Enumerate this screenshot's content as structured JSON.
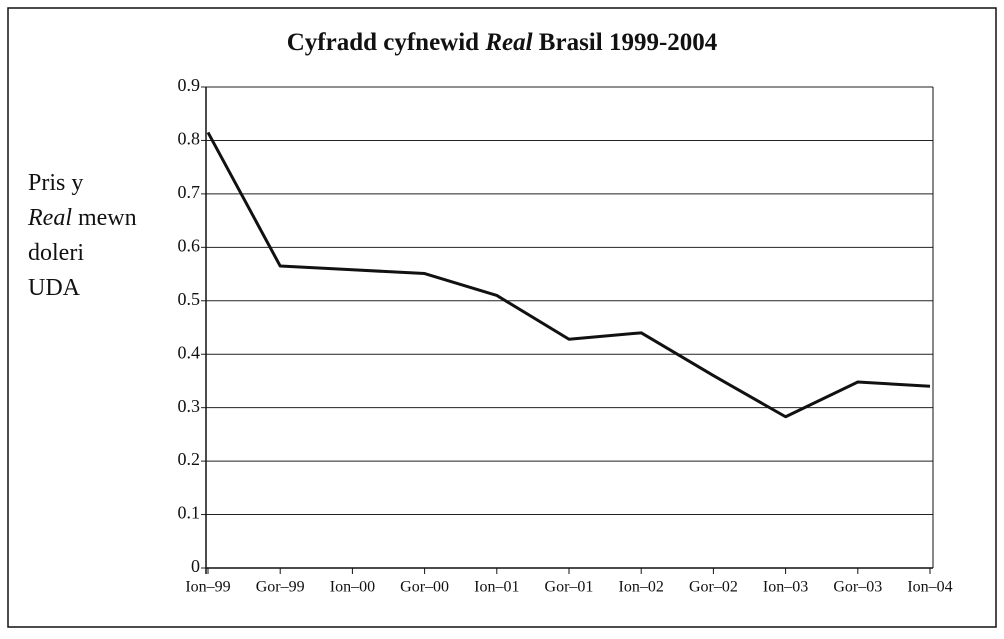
{
  "chart_data": {
    "type": "line",
    "title": [
      "Cyfradd cyfnewid",
      "Real",
      "Brasil 1999-2004"
    ],
    "y_label": [
      [
        "Pris y"
      ],
      [
        "Real",
        "mewn"
      ],
      [
        "doleri"
      ],
      [
        "UDA"
      ]
    ],
    "categories": [
      "Ion–99",
      "Gor–99",
      "Ion–00",
      "Gor–00",
      "Ion–01",
      "Gor–01",
      "Ion–02",
      "Gor–02",
      "Ion–03",
      "Gor–03",
      "Ion–04"
    ],
    "values": [
      0.815,
      0.565,
      0.558,
      0.551,
      0.51,
      0.428,
      0.44,
      0.36,
      0.283,
      0.348,
      0.34
    ],
    "color": "#111111",
    "ylim": [
      0,
      0.9
    ],
    "yticks": [
      0,
      0.1,
      0.2,
      0.3,
      0.4,
      0.5,
      0.6,
      0.7,
      0.8,
      0.9
    ],
    "grid": true
  }
}
